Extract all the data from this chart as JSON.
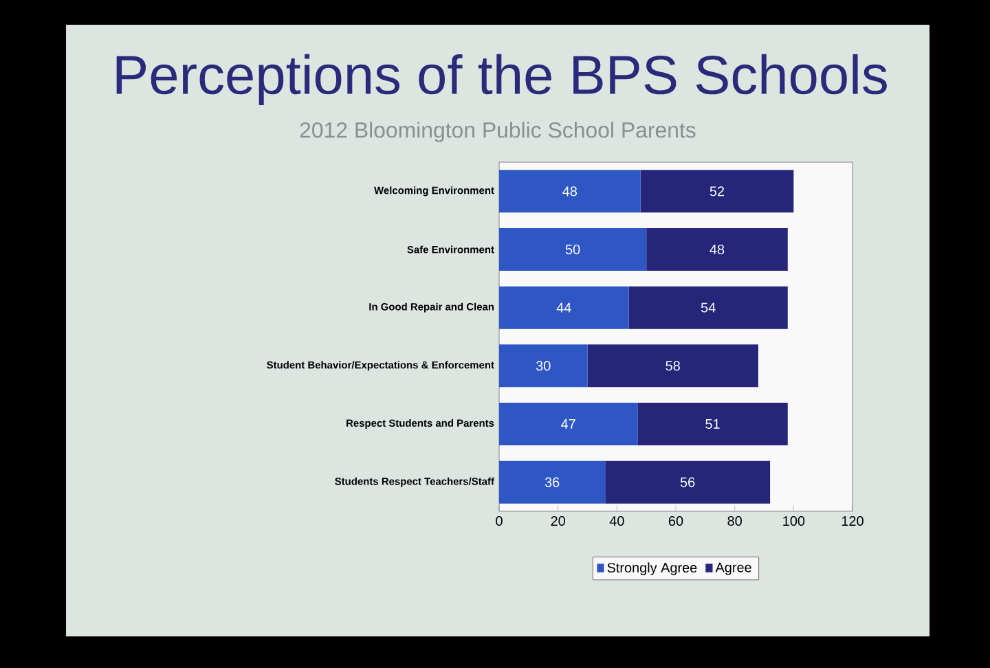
{
  "chart_data": {
    "type": "bar",
    "title": "Perceptions of the BPS Schools",
    "subtitle": "2012 Bloomington Public School Parents",
    "categories": [
      "Welcoming Environment",
      "Safe Environment",
      "In Good Repair and Clean",
      "Student Behavior/Expectations & Enforcement",
      "Respect Students and Parents",
      "Students Respect Teachers/Staff"
    ],
    "series": [
      {
        "name": "Strongly Agree",
        "color": "#2f57c4",
        "values": [
          48,
          50,
          44,
          30,
          47,
          36
        ]
      },
      {
        "name": "Agree",
        "color": "#25257a",
        "values": [
          52,
          48,
          54,
          58,
          51,
          56
        ]
      }
    ],
    "orientation": "horizontal",
    "stacked": true,
    "data_labels": true,
    "xlim": [
      0,
      120
    ],
    "xticks": [
      0,
      20,
      40,
      60,
      80,
      100,
      120
    ],
    "legend": "bottom"
  }
}
